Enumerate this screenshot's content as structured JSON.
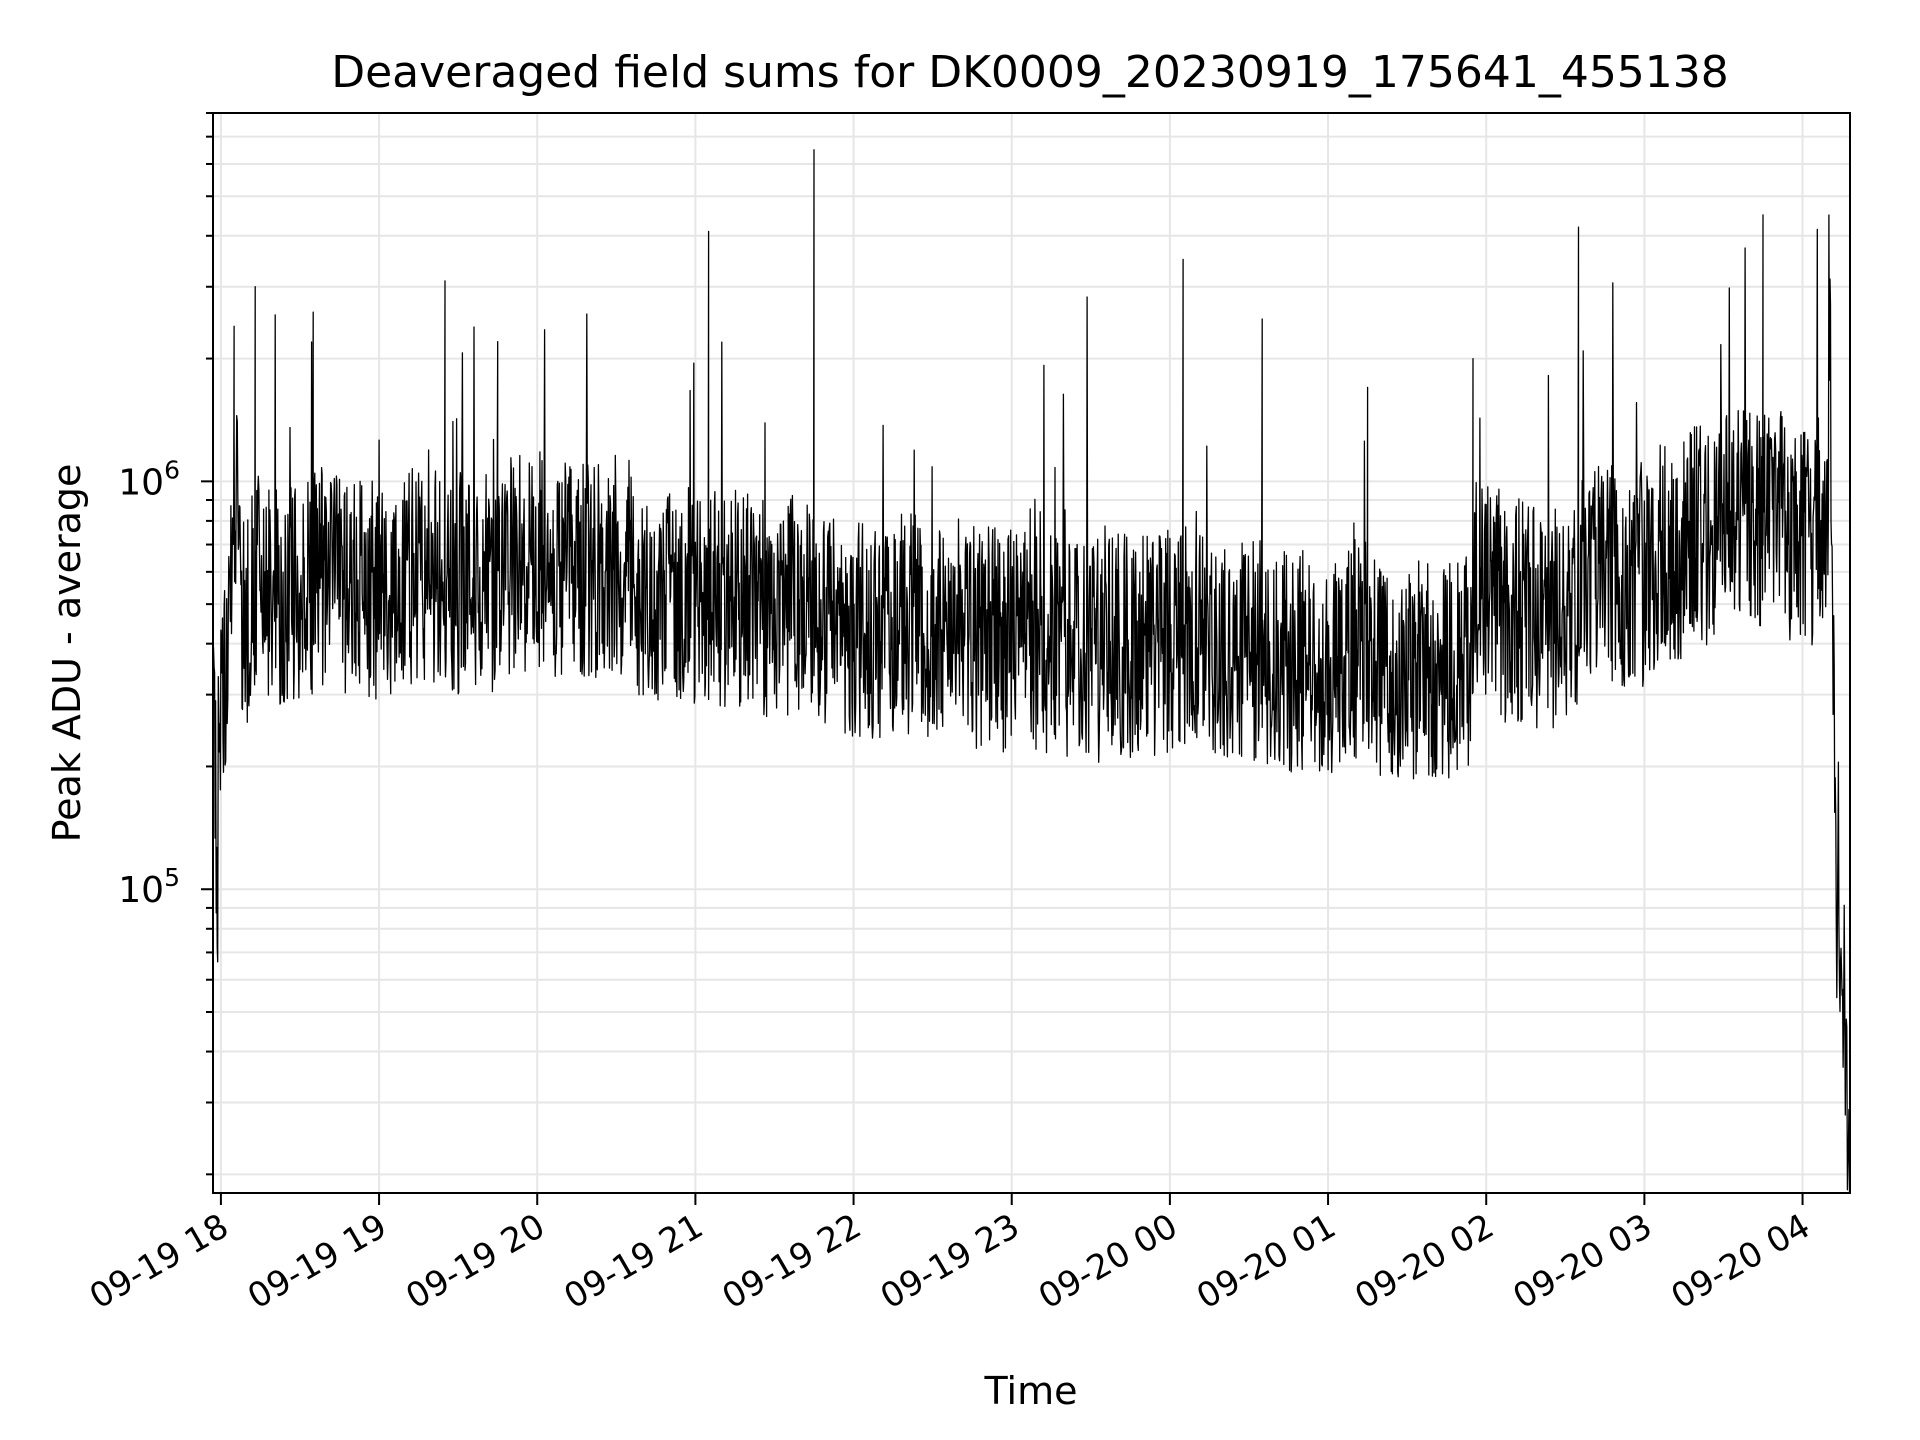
{
  "chart_data": {
    "type": "line",
    "title": "Deaveraged field sums for DK0009_20230919_175641_455138",
    "xlabel": "Time",
    "ylabel": "Peak ADU - average",
    "yscale": "log",
    "ylim": [
      18000,
      8000000
    ],
    "xlim": [
      "2023-09-19 17:57",
      "2023-09-20 04:18"
    ],
    "grid": true,
    "x_ticks": [
      "09-19 18",
      "09-19 19",
      "09-19 20",
      "09-19 21",
      "09-19 22",
      "09-19 23",
      "09-20 00",
      "09-20 01",
      "09-20 02",
      "09-20 03",
      "09-20 04"
    ],
    "y_ticks": [
      {
        "base": "10",
        "exp": "5",
        "value": 100000
      },
      {
        "base": "10",
        "exp": "6",
        "value": 1000000
      }
    ],
    "line_color": "#000000",
    "series": [
      {
        "x": [
          "2023-09-19 17:57",
          "2023-09-19 17:59",
          "2023-09-19 18:00",
          "2023-09-19 18:03",
          "2023-09-19 18:05",
          "2023-09-19 18:08",
          "2023-09-19 18:10",
          "2023-09-19 18:13",
          "2023-09-19 18:15",
          "2023-09-19 18:20",
          "2023-09-19 18:25",
          "2023-09-19 18:30",
          "2023-09-19 18:35",
          "2023-09-19 18:45",
          "2023-09-19 18:55",
          "2023-09-19 19:05",
          "2023-09-19 19:15",
          "2023-09-19 19:25",
          "2023-09-19 19:35",
          "2023-09-19 19:45",
          "2023-09-19 19:55",
          "2023-09-19 20:05",
          "2023-09-19 20:15",
          "2023-09-19 20:25",
          "2023-09-19 20:35",
          "2023-09-19 20:45",
          "2023-09-19 20:55",
          "2023-09-19 21:05",
          "2023-09-19 21:15",
          "2023-09-19 21:25",
          "2023-09-19 21:35",
          "2023-09-19 21:45",
          "2023-09-19 21:55",
          "2023-09-19 22:05",
          "2023-09-19 22:15",
          "2023-09-19 22:25",
          "2023-09-19 22:35",
          "2023-09-19 22:45",
          "2023-09-19 22:55",
          "2023-09-19 23:05",
          "2023-09-19 23:15",
          "2023-09-19 23:25",
          "2023-09-19 23:35",
          "2023-09-19 23:45",
          "2023-09-19 23:55",
          "2023-09-20 00:05",
          "2023-09-20 00:15",
          "2023-09-20 00:25",
          "2023-09-20 00:35",
          "2023-09-20 00:45",
          "2023-09-20 00:55",
          "2023-09-20 01:05",
          "2023-09-20 01:15",
          "2023-09-20 01:25",
          "2023-09-20 01:35",
          "2023-09-20 01:45",
          "2023-09-20 01:55",
          "2023-09-20 02:05",
          "2023-09-20 02:15",
          "2023-09-20 02:25",
          "2023-09-20 02:35",
          "2023-09-20 02:45",
          "2023-09-20 02:55",
          "2023-09-20 03:05",
          "2023-09-20 03:15",
          "2023-09-20 03:25",
          "2023-09-20 03:35",
          "2023-09-20 03:45",
          "2023-09-20 03:55",
          "2023-09-20 04:00",
          "2023-09-20 04:05",
          "2023-09-20 04:10",
          "2023-09-20 04:13",
          "2023-09-20 04:16",
          "2023-09-20 04:18"
        ],
        "y": [
          400000,
          70000,
          140000,
          480000,
          2400000,
          1200000,
          300000,
          3000000,
          400000,
          350000,
          450000,
          380000,
          2600000,
          420000,
          400000,
          550000,
          450000,
          3100000,
          420000,
          2200000,
          500000,
          600000,
          450000,
          1300000,
          500000,
          400000,
          380000,
          4100000,
          350000,
          420000,
          330000,
          6500000,
          300000,
          260000,
          280000,
          300000,
          270000,
          350000,
          250000,
          240000,
          260000,
          220000,
          250000,
          230000,
          240000,
          3500000,
          260000,
          220000,
          2500000,
          210000,
          200000,
          220000,
          1700000,
          180000,
          200000,
          190000,
          2000000,
          380000,
          320000,
          300000,
          4200000,
          500000,
          450000,
          550000,
          650000,
          700000,
          750000,
          4500000,
          800000,
          650000,
          700000,
          3000000,
          90000,
          48000,
          20000
        ]
      }
    ],
    "notes": [
      "dense noisy line, baseline ~2e5–6e5 with sharp spikes to ~6e6"
    ]
  }
}
